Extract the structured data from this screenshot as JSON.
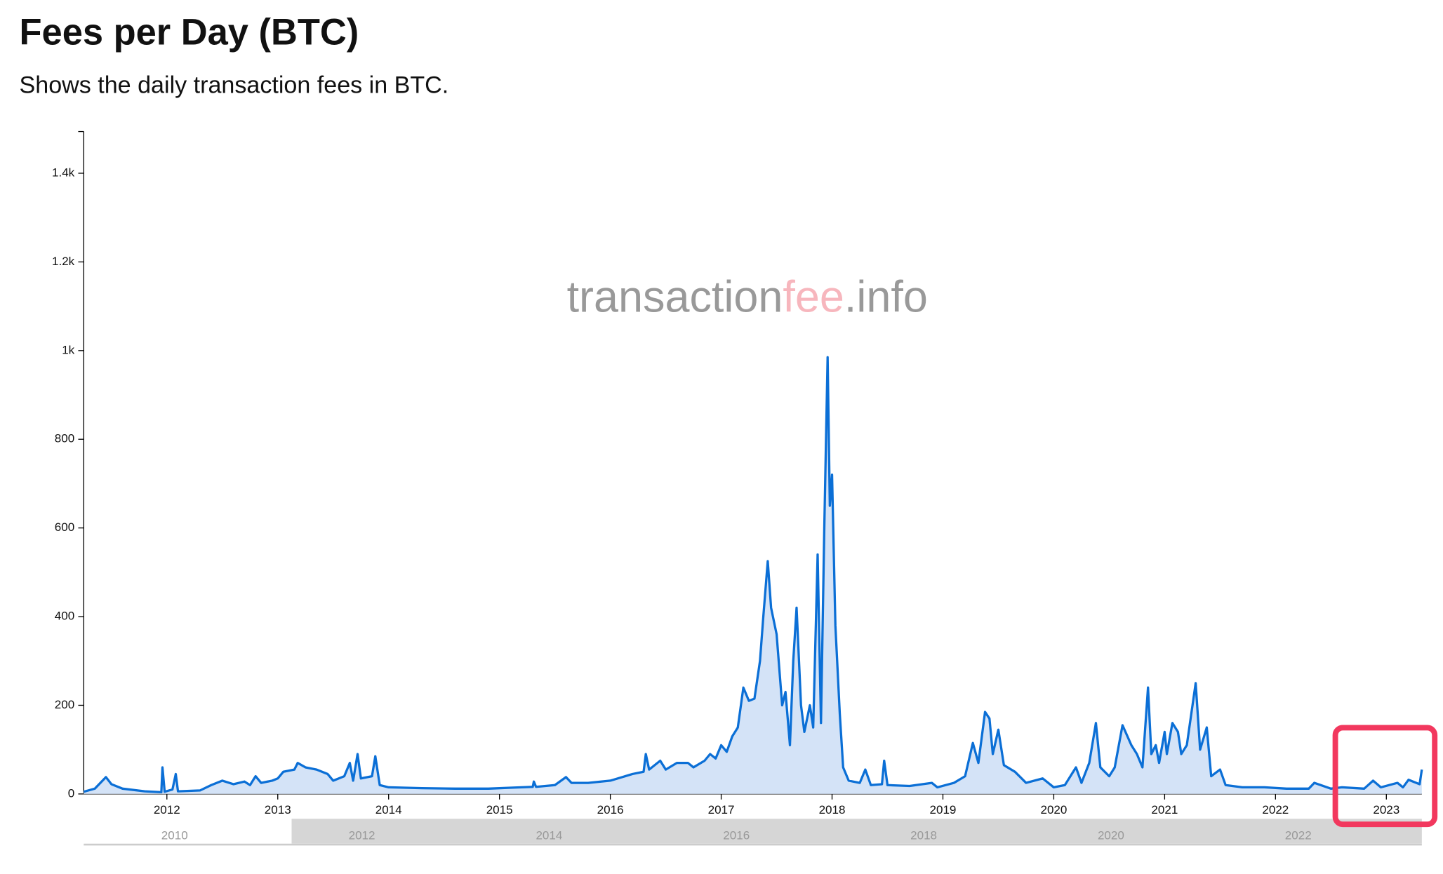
{
  "chart_data": {
    "type": "area",
    "title": "Fees per Day (BTC)",
    "subtitle": "Shows the daily transaction fees in BTC.",
    "watermark": [
      "transaction",
      "fee",
      ".info"
    ],
    "color": "#0b6fd6",
    "fill": "#d4e3f7",
    "xlim": [
      2011.25,
      2023.32
    ],
    "xticks": [
      2012,
      2013,
      2014,
      2015,
      2016,
      2017,
      2018,
      2019,
      2020,
      2021,
      2022,
      2023
    ],
    "ylim": [
      0,
      1494
    ],
    "yticks": [
      0,
      200,
      400,
      600,
      800,
      {
        "value": 1000,
        "label": "1k"
      },
      {
        "value": 1200,
        "label": "1.2k"
      },
      {
        "value": 1400,
        "label": "1.4k"
      }
    ],
    "x": [
      2011.25,
      2011.35,
      2011.45,
      2011.5,
      2011.6,
      2011.8,
      2011.95,
      2011.96,
      2011.98,
      2012.05,
      2012.08,
      2012.1,
      2012.3,
      2012.4,
      2012.5,
      2012.6,
      2012.7,
      2012.75,
      2012.8,
      2012.85,
      2012.95,
      2013.0,
      2013.05,
      2013.15,
      2013.18,
      2013.25,
      2013.35,
      2013.45,
      2013.5,
      2013.6,
      2013.65,
      2013.68,
      2013.72,
      2013.75,
      2013.85,
      2013.88,
      2013.92,
      2014.0,
      2014.3,
      2014.6,
      2014.9,
      2015.1,
      2015.3,
      2015.31,
      2015.33,
      2015.5,
      2015.6,
      2015.65,
      2015.8,
      2016.0,
      2016.2,
      2016.3,
      2016.32,
      2016.35,
      2016.45,
      2016.5,
      2016.6,
      2016.7,
      2016.75,
      2016.85,
      2016.9,
      2016.95,
      2017.0,
      2017.05,
      2017.1,
      2017.15,
      2017.2,
      2017.25,
      2017.3,
      2017.35,
      2017.38,
      2017.42,
      2017.45,
      2017.5,
      2017.55,
      2017.58,
      2017.62,
      2017.65,
      2017.68,
      2017.72,
      2017.75,
      2017.8,
      2017.83,
      2017.87,
      2017.9,
      2017.93,
      2017.96,
      2017.98,
      2018.0,
      2018.03,
      2018.07,
      2018.1,
      2018.15,
      2018.25,
      2018.3,
      2018.35,
      2018.45,
      2018.47,
      2018.5,
      2018.7,
      2018.9,
      2018.95,
      2019.1,
      2019.2,
      2019.27,
      2019.32,
      2019.38,
      2019.42,
      2019.45,
      2019.5,
      2019.55,
      2019.65,
      2019.75,
      2019.9,
      2020.0,
      2020.1,
      2020.2,
      2020.25,
      2020.32,
      2020.38,
      2020.42,
      2020.5,
      2020.55,
      2020.62,
      2020.7,
      2020.75,
      2020.8,
      2020.85,
      2020.88,
      2020.92,
      2020.95,
      2021.0,
      2021.02,
      2021.07,
      2021.12,
      2021.15,
      2021.2,
      2021.28,
      2021.32,
      2021.38,
      2021.42,
      2021.5,
      2021.55,
      2021.7,
      2021.9,
      2022.1,
      2022.3,
      2022.35,
      2022.5,
      2022.6,
      2022.8,
      2022.88,
      2022.95,
      2023.1,
      2023.15,
      2023.2,
      2023.3,
      2023.32
    ],
    "values": [
      5,
      12,
      38,
      22,
      12,
      6,
      4,
      60,
      5,
      10,
      45,
      6,
      8,
      20,
      30,
      22,
      28,
      20,
      40,
      25,
      30,
      35,
      50,
      55,
      70,
      60,
      55,
      45,
      30,
      40,
      70,
      30,
      90,
      35,
      40,
      85,
      20,
      15,
      13,
      12,
      12,
      14,
      16,
      28,
      16,
      20,
      38,
      25,
      25,
      30,
      45,
      50,
      90,
      55,
      75,
      55,
      70,
      70,
      60,
      75,
      90,
      80,
      110,
      95,
      130,
      150,
      240,
      210,
      215,
      300,
      400,
      525,
      420,
      360,
      200,
      230,
      110,
      300,
      420,
      200,
      140,
      200,
      150,
      540,
      160,
      600,
      985,
      650,
      720,
      380,
      180,
      60,
      30,
      25,
      55,
      20,
      22,
      75,
      20,
      18,
      25,
      15,
      25,
      40,
      115,
      70,
      185,
      170,
      90,
      145,
      65,
      50,
      25,
      35,
      15,
      20,
      60,
      25,
      70,
      160,
      60,
      40,
      60,
      155,
      110,
      90,
      60,
      240,
      90,
      110,
      70,
      140,
      90,
      160,
      140,
      90,
      110,
      250,
      100,
      150,
      40,
      55,
      20,
      15,
      15,
      12,
      12,
      25,
      12,
      15,
      12,
      30,
      15,
      25,
      15,
      32,
      22,
      55
    ],
    "navigator": {
      "xlim": [
        2009.03,
        2023.32
      ],
      "xticks": [
        2010,
        2012,
        2014,
        2016,
        2018,
        2020,
        2022
      ],
      "selection": [
        2011.25,
        2023.32
      ]
    }
  }
}
